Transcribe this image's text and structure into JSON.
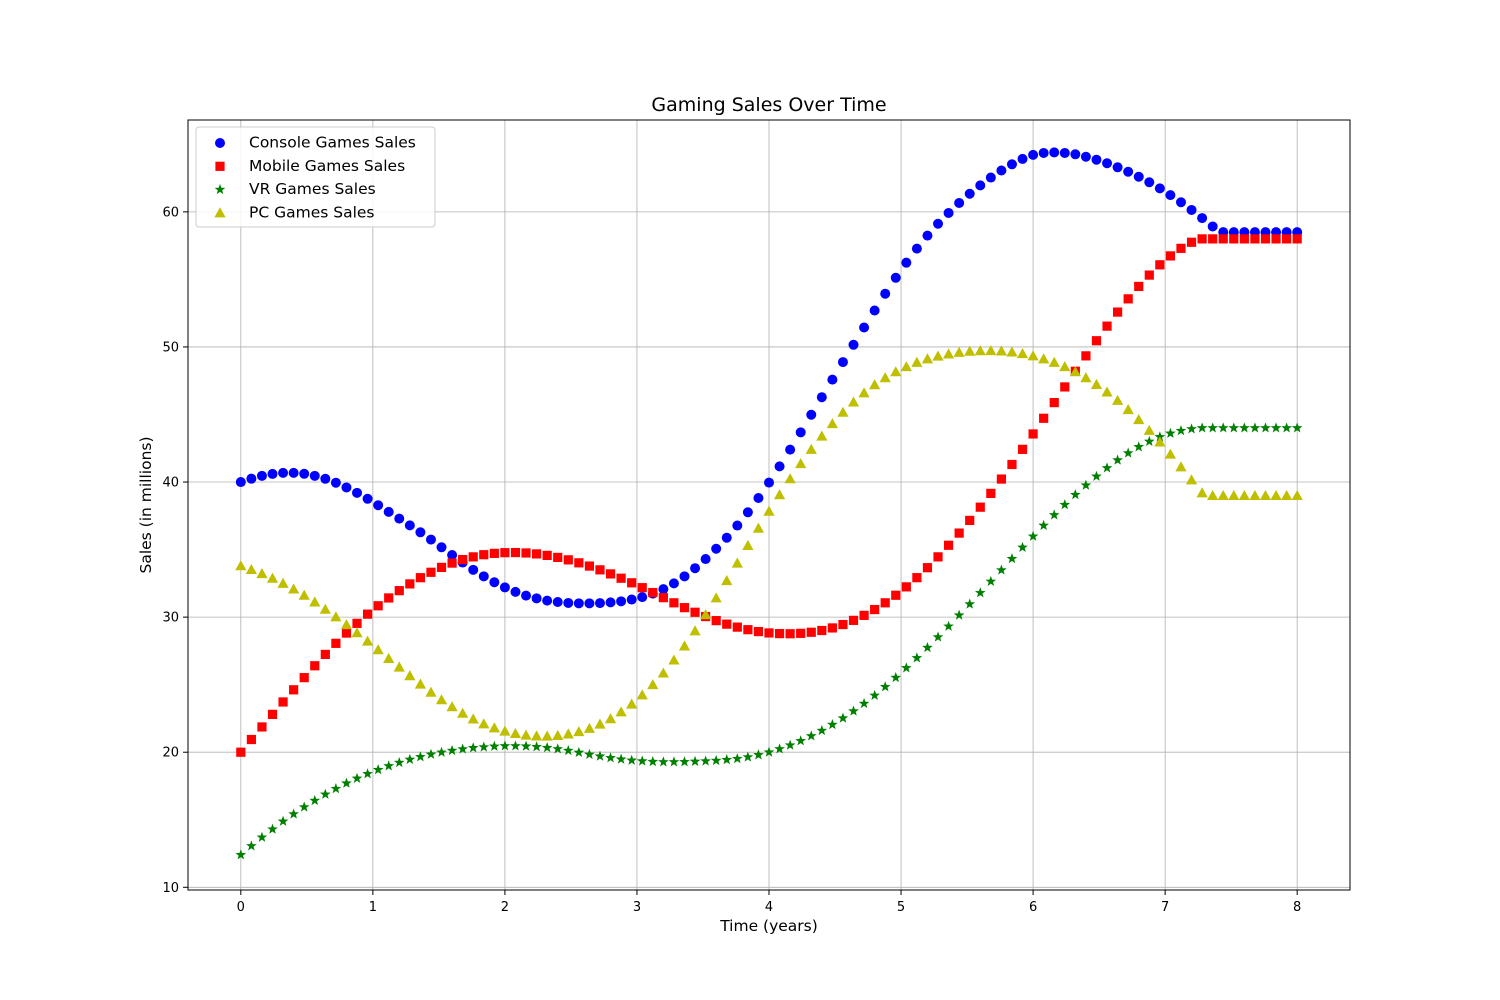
{
  "chart_data": {
    "type": "scatter",
    "title": "Gaming Sales Over Time",
    "xlabel": "Time (years)",
    "ylabel": "Sales (in millions)",
    "xlim": [
      -0.4,
      8.4
    ],
    "ylim": [
      9.8,
      66.8
    ],
    "x_ticks": [
      0,
      1,
      2,
      3,
      4,
      5,
      6,
      7,
      8
    ],
    "y_ticks": [
      10,
      20,
      30,
      40,
      50,
      60
    ],
    "grid": true,
    "legend_position": "upper-left",
    "x": [
      0,
      0.08,
      0.16,
      0.24,
      0.32,
      0.4,
      0.48,
      0.56,
      0.64,
      0.72,
      0.8,
      0.88,
      0.96,
      1.04,
      1.12,
      1.2,
      1.28,
      1.36,
      1.44,
      1.52,
      1.6,
      1.68,
      1.76,
      1.84,
      1.92,
      2.0,
      2.08,
      2.16,
      2.24,
      2.32,
      2.4,
      2.48,
      2.56,
      2.64,
      2.72,
      2.8,
      2.88,
      2.96,
      3.04,
      3.12,
      3.2,
      3.28,
      3.36,
      3.44,
      3.52,
      3.6,
      3.68,
      3.76,
      3.84,
      3.92,
      4.0,
      4.08,
      4.16,
      4.24,
      4.32,
      4.4,
      4.48,
      4.56,
      4.64,
      4.72,
      4.8,
      4.88,
      4.96,
      5.04,
      5.12,
      5.2,
      5.28,
      5.36,
      5.44,
      5.52,
      5.6,
      5.68,
      5.76,
      5.84,
      5.92,
      6.0,
      6.08,
      6.16,
      6.24,
      6.32,
      6.4,
      6.48,
      6.56,
      6.64,
      6.72,
      6.8,
      6.88,
      6.96,
      7.04,
      7.12,
      7.2,
      7.28,
      7.36,
      7.44,
      7.52,
      7.6,
      7.68,
      7.76,
      7.84,
      7.92,
      8.0
    ],
    "series": [
      {
        "name": "Console Games Sales",
        "marker": "circle",
        "color": "#0000ff",
        "values": [
          40.0,
          40.25,
          40.46,
          40.6,
          40.68,
          40.68,
          40.61,
          40.46,
          40.24,
          39.95,
          39.6,
          39.2,
          38.76,
          38.28,
          37.79,
          37.29,
          36.79,
          36.28,
          35.74,
          35.17,
          34.6,
          34.04,
          33.5,
          33.02,
          32.58,
          32.2,
          31.87,
          31.59,
          31.39,
          31.22,
          31.12,
          31.05,
          31.02,
          31.02,
          31.04,
          31.09,
          31.17,
          31.3,
          31.48,
          31.74,
          32.07,
          32.5,
          33.02,
          33.62,
          34.3,
          35.06,
          35.88,
          36.78,
          37.76,
          38.82,
          39.96,
          41.16,
          42.4,
          43.68,
          44.98,
          46.28,
          47.58,
          48.88,
          50.16,
          51.44,
          52.7,
          53.94,
          55.12,
          56.24,
          57.28,
          58.24,
          59.12,
          59.92,
          60.66,
          61.34,
          61.96,
          62.54,
          63.06,
          63.52,
          63.92,
          64.22,
          64.36,
          64.4,
          64.36,
          64.26,
          64.08,
          63.86,
          63.6,
          63.3,
          62.97,
          62.6,
          62.19,
          61.74,
          61.24,
          60.71,
          60.14,
          59.54,
          58.92,
          58.5,
          58.5,
          58.5,
          58.5,
          58.5,
          58.5,
          58.5,
          58.5
        ]
      },
      {
        "name": "Mobile Games Sales",
        "marker": "square",
        "color": "#ff0000",
        "values": [
          20.0,
          20.94,
          21.87,
          22.8,
          23.72,
          24.62,
          25.52,
          26.4,
          27.24,
          28.06,
          28.82,
          29.54,
          30.22,
          30.84,
          31.42,
          31.96,
          32.46,
          32.92,
          33.32,
          33.68,
          34.0,
          34.26,
          34.46,
          34.62,
          34.72,
          34.77,
          34.78,
          34.75,
          34.68,
          34.57,
          34.42,
          34.24,
          34.02,
          33.78,
          33.5,
          33.2,
          32.88,
          32.54,
          32.18,
          31.82,
          31.44,
          31.06,
          30.7,
          30.36,
          30.04,
          29.74,
          29.48,
          29.26,
          29.07,
          28.93,
          28.83,
          28.78,
          28.77,
          28.8,
          28.88,
          29.01,
          29.2,
          29.45,
          29.76,
          30.13,
          30.56,
          31.06,
          31.62,
          32.24,
          32.92,
          33.66,
          34.46,
          35.32,
          36.22,
          37.16,
          38.14,
          39.16,
          40.22,
          41.3,
          42.42,
          43.56,
          44.72,
          45.88,
          47.04,
          48.2,
          49.34,
          50.46,
          51.54,
          52.58,
          53.56,
          54.48,
          55.32,
          56.08,
          56.74,
          57.3,
          57.75,
          58.0,
          58.0,
          58.0,
          58.0,
          58.0,
          58.0,
          58.0,
          58.0,
          58.0,
          58.0
        ]
      },
      {
        "name": "VR Games Sales",
        "marker": "star",
        "color": "#008000",
        "values": [
          12.4,
          13.06,
          13.7,
          14.3,
          14.88,
          15.42,
          15.94,
          16.42,
          16.88,
          17.3,
          17.7,
          18.06,
          18.4,
          18.7,
          18.98,
          19.23,
          19.46,
          19.66,
          19.84,
          19.99,
          20.12,
          20.23,
          20.32,
          20.38,
          20.43,
          20.46,
          20.46,
          20.44,
          20.4,
          20.33,
          20.24,
          20.12,
          19.98,
          19.83,
          19.7,
          19.58,
          19.48,
          19.4,
          19.34,
          19.3,
          19.28,
          19.28,
          19.29,
          19.31,
          19.34,
          19.38,
          19.44,
          19.52,
          19.64,
          19.8,
          20.0,
          20.24,
          20.52,
          20.84,
          21.2,
          21.6,
          22.04,
          22.52,
          23.04,
          23.6,
          24.2,
          24.84,
          25.52,
          26.24,
          26.98,
          27.74,
          28.52,
          29.32,
          30.14,
          30.96,
          31.8,
          32.64,
          33.48,
          34.32,
          35.16,
          35.98,
          36.78,
          37.56,
          38.32,
          39.06,
          39.76,
          40.42,
          41.04,
          41.62,
          42.14,
          42.6,
          43.0,
          43.34,
          43.6,
          43.8,
          43.93,
          44.0,
          44.0,
          44.0,
          44.0,
          44.0,
          44.0,
          44.0,
          44.0,
          44.0,
          44.0
        ]
      },
      {
        "name": "PC Games Sales",
        "marker": "triangle",
        "color": "#bfbf00",
        "values": [
          33.8,
          33.52,
          33.22,
          32.88,
          32.5,
          32.08,
          31.62,
          31.12,
          30.58,
          30.02,
          29.44,
          28.84,
          28.22,
          27.58,
          26.94,
          26.3,
          25.66,
          25.04,
          24.44,
          23.88,
          23.36,
          22.88,
          22.46,
          22.1,
          21.8,
          21.56,
          21.38,
          21.26,
          21.2,
          21.19,
          21.24,
          21.35,
          21.52,
          21.76,
          22.08,
          22.48,
          22.98,
          23.56,
          24.24,
          25.0,
          25.86,
          26.82,
          27.86,
          28.98,
          30.18,
          31.42,
          32.7,
          34.0,
          35.3,
          36.58,
          37.84,
          39.06,
          40.24,
          41.36,
          42.42,
          43.4,
          44.32,
          45.16,
          45.92,
          46.6,
          47.2,
          47.72,
          48.16,
          48.54,
          48.86,
          49.12,
          49.32,
          49.48,
          49.6,
          49.68,
          49.72,
          49.73,
          49.7,
          49.62,
          49.5,
          49.34,
          49.12,
          48.86,
          48.54,
          48.16,
          47.72,
          47.22,
          46.66,
          46.04,
          45.36,
          44.62,
          43.82,
          42.96,
          42.06,
          41.12,
          40.16,
          39.2,
          39.0,
          39.0,
          39.0,
          39.0,
          39.0,
          39.0,
          39.0,
          39.0,
          39.0
        ]
      }
    ]
  }
}
